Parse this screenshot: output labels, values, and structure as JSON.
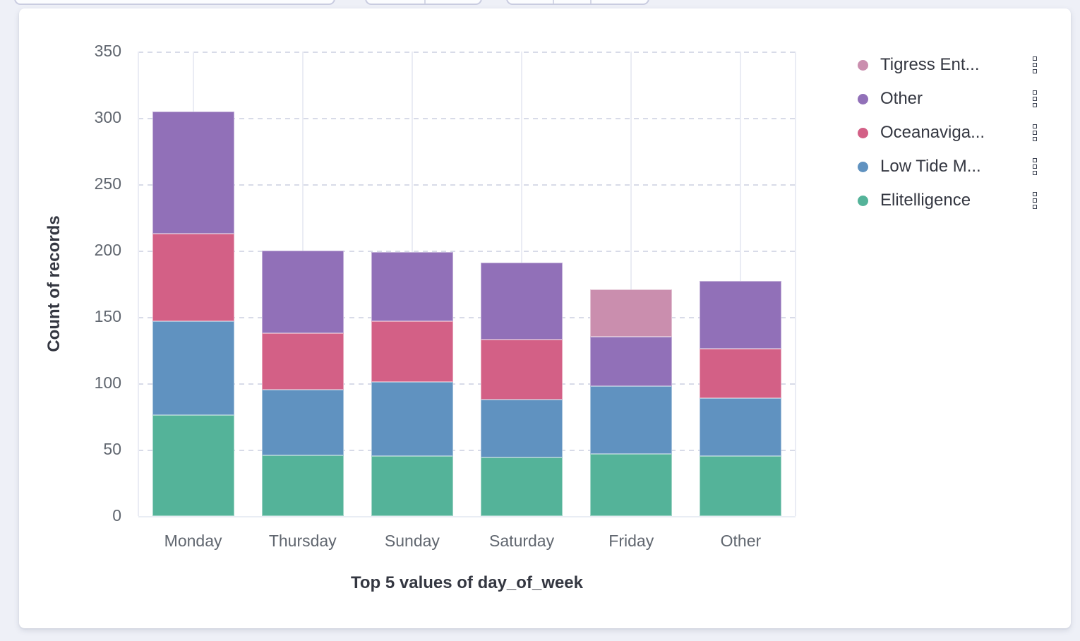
{
  "colors": {
    "page_background": "#eef0f7",
    "card_background": "#ffffff",
    "grid_dashed": "#d8dbe8",
    "grid_solid": "#e9edf4",
    "tick_label": "#60666f",
    "axis_title": "#343741",
    "legend_label": "#343741"
  },
  "chart_data": {
    "type": "bar",
    "stacked": true,
    "title": "",
    "xlabel": "Top 5 values of day_of_week",
    "ylabel": "Count of records",
    "ylim": [
      0,
      350
    ],
    "yticks": [
      0,
      50,
      100,
      150,
      200,
      250,
      300,
      350
    ],
    "grid": true,
    "legend_position": "right",
    "categories": [
      "Monday",
      "Thursday",
      "Sunday",
      "Saturday",
      "Friday",
      "Other"
    ],
    "series": [
      {
        "name": "Elitelligence",
        "color": "#54b399",
        "values": [
          76,
          46,
          45,
          44,
          47,
          45
        ]
      },
      {
        "name": "Low Tide M...",
        "color": "#6092c0",
        "values": [
          71,
          49,
          56,
          44,
          51,
          44
        ]
      },
      {
        "name": "Oceanaviga...",
        "color": "#d36086",
        "values": [
          66,
          43,
          46,
          45,
          0,
          37
        ]
      },
      {
        "name": "Other",
        "color": "#9170b8",
        "values": [
          92,
          62,
          52,
          58,
          37,
          51
        ]
      },
      {
        "name": "Tigress Ent...",
        "color": "#ca8eae",
        "values": [
          0,
          0,
          0,
          0,
          36,
          0
        ]
      }
    ],
    "totals": [
      305,
      200,
      199,
      191,
      171,
      177
    ]
  },
  "legend": {
    "items": [
      {
        "label": "Tigress Ent...",
        "color": "#ca8eae"
      },
      {
        "label": "Other",
        "color": "#9170b8"
      },
      {
        "label": "Oceanaviga...",
        "color": "#d36086"
      },
      {
        "label": "Low Tide M...",
        "color": "#6092c0"
      },
      {
        "label": "Elitelligence",
        "color": "#54b399"
      }
    ],
    "actions_icon": "three-squares-vertical"
  }
}
